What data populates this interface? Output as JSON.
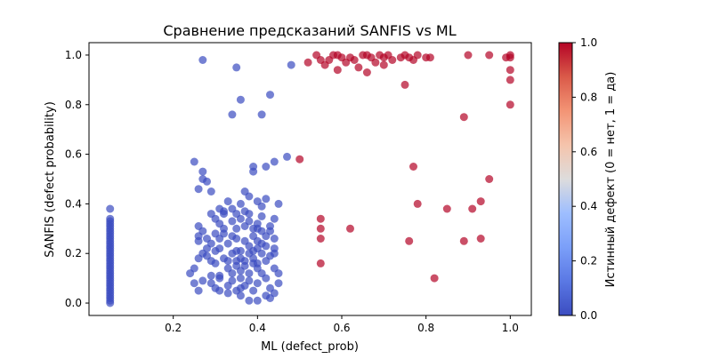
{
  "chart_data": {
    "type": "scatter",
    "title": "Сравнение предсказаний SANFIS vs ML",
    "xlabel": "ML (defect_prob)",
    "ylabel": "SANFIS (defect probability)",
    "xlim": [
      0.0,
      1.05
    ],
    "ylim": [
      -0.05,
      1.05
    ],
    "xticks": [
      "0.2",
      "0.4",
      "0.6",
      "0.8",
      "1.0"
    ],
    "yticks": [
      "0.0",
      "0.2",
      "0.4",
      "0.6",
      "0.8",
      "1.0"
    ],
    "grid": false,
    "colorbar": {
      "label": "Истинный дефект (0 = нет, 1 = да)",
      "colormap": "coolwarm",
      "range": [
        0.0,
        1.0
      ],
      "ticks": [
        "0.0",
        "0.2",
        "0.4",
        "0.6",
        "0.8",
        "1.0"
      ],
      "low_color": "#3b4cc0",
      "high_color": "#b40426"
    },
    "series": [
      {
        "class": 0,
        "color": "#3b4cc0",
        "points": [
          [
            0.05,
            0.0
          ],
          [
            0.05,
            0.01
          ],
          [
            0.05,
            0.02
          ],
          [
            0.05,
            0.03
          ],
          [
            0.05,
            0.04
          ],
          [
            0.05,
            0.05
          ],
          [
            0.05,
            0.06
          ],
          [
            0.05,
            0.07
          ],
          [
            0.05,
            0.08
          ],
          [
            0.05,
            0.09
          ],
          [
            0.05,
            0.1
          ],
          [
            0.05,
            0.11
          ],
          [
            0.05,
            0.12
          ],
          [
            0.05,
            0.13
          ],
          [
            0.05,
            0.14
          ],
          [
            0.05,
            0.15
          ],
          [
            0.05,
            0.16
          ],
          [
            0.05,
            0.17
          ],
          [
            0.05,
            0.18
          ],
          [
            0.05,
            0.19
          ],
          [
            0.05,
            0.2
          ],
          [
            0.05,
            0.21
          ],
          [
            0.05,
            0.22
          ],
          [
            0.05,
            0.23
          ],
          [
            0.05,
            0.24
          ],
          [
            0.05,
            0.25
          ],
          [
            0.05,
            0.26
          ],
          [
            0.05,
            0.27
          ],
          [
            0.05,
            0.28
          ],
          [
            0.05,
            0.29
          ],
          [
            0.05,
            0.3
          ],
          [
            0.05,
            0.31
          ],
          [
            0.05,
            0.32
          ],
          [
            0.05,
            0.33
          ],
          [
            0.05,
            0.34
          ],
          [
            0.05,
            0.38
          ],
          [
            0.27,
            0.98
          ],
          [
            0.35,
            0.95
          ],
          [
            0.48,
            0.96
          ],
          [
            0.36,
            0.82
          ],
          [
            0.43,
            0.84
          ],
          [
            0.34,
            0.76
          ],
          [
            0.41,
            0.76
          ],
          [
            0.25,
            0.57
          ],
          [
            0.39,
            0.53
          ],
          [
            0.42,
            0.55
          ],
          [
            0.44,
            0.57
          ],
          [
            0.47,
            0.59
          ],
          [
            0.39,
            0.55
          ],
          [
            0.27,
            0.53
          ],
          [
            0.27,
            0.5
          ],
          [
            0.28,
            0.49
          ],
          [
            0.26,
            0.46
          ],
          [
            0.29,
            0.45
          ],
          [
            0.37,
            0.45
          ],
          [
            0.38,
            0.43
          ],
          [
            0.42,
            0.42
          ],
          [
            0.4,
            0.41
          ],
          [
            0.36,
            0.4
          ],
          [
            0.33,
            0.41
          ],
          [
            0.31,
            0.38
          ],
          [
            0.32,
            0.37
          ],
          [
            0.35,
            0.36
          ],
          [
            0.37,
            0.37
          ],
          [
            0.41,
            0.39
          ],
          [
            0.45,
            0.4
          ],
          [
            0.41,
            0.35
          ],
          [
            0.44,
            0.34
          ],
          [
            0.38,
            0.33
          ],
          [
            0.34,
            0.33
          ],
          [
            0.3,
            0.34
          ],
          [
            0.31,
            0.32
          ],
          [
            0.29,
            0.36
          ],
          [
            0.26,
            0.31
          ],
          [
            0.27,
            0.29
          ],
          [
            0.26,
            0.27
          ],
          [
            0.26,
            0.25
          ],
          [
            0.28,
            0.26
          ],
          [
            0.3,
            0.28
          ],
          [
            0.32,
            0.3
          ],
          [
            0.35,
            0.3
          ],
          [
            0.37,
            0.31
          ],
          [
            0.39,
            0.3
          ],
          [
            0.43,
            0.31
          ],
          [
            0.41,
            0.29
          ],
          [
            0.39,
            0.27
          ],
          [
            0.37,
            0.25
          ],
          [
            0.35,
            0.26
          ],
          [
            0.33,
            0.24
          ],
          [
            0.31,
            0.22
          ],
          [
            0.28,
            0.22
          ],
          [
            0.27,
            0.2
          ],
          [
            0.29,
            0.17
          ],
          [
            0.3,
            0.16
          ],
          [
            0.32,
            0.18
          ],
          [
            0.35,
            0.21
          ],
          [
            0.38,
            0.23
          ],
          [
            0.4,
            0.25
          ],
          [
            0.42,
            0.23
          ],
          [
            0.44,
            0.22
          ],
          [
            0.41,
            0.2
          ],
          [
            0.39,
            0.18
          ],
          [
            0.37,
            0.17
          ],
          [
            0.35,
            0.15
          ],
          [
            0.33,
            0.14
          ],
          [
            0.36,
            0.13
          ],
          [
            0.38,
            0.12
          ],
          [
            0.4,
            0.14
          ],
          [
            0.42,
            0.17
          ],
          [
            0.43,
            0.19
          ],
          [
            0.44,
            0.14
          ],
          [
            0.45,
            0.12
          ],
          [
            0.42,
            0.1
          ],
          [
            0.4,
            0.08
          ],
          [
            0.37,
            0.07
          ],
          [
            0.34,
            0.09
          ],
          [
            0.31,
            0.1
          ],
          [
            0.29,
            0.08
          ],
          [
            0.27,
            0.09
          ],
          [
            0.25,
            0.08
          ],
          [
            0.26,
            0.05
          ],
          [
            0.25,
            0.14
          ],
          [
            0.24,
            0.12
          ],
          [
            0.31,
            0.05
          ],
          [
            0.33,
            0.04
          ],
          [
            0.36,
            0.03
          ],
          [
            0.39,
            0.05
          ],
          [
            0.42,
            0.03
          ],
          [
            0.44,
            0.04
          ],
          [
            0.43,
            0.06
          ],
          [
            0.45,
            0.08
          ],
          [
            0.41,
            0.12
          ],
          [
            0.38,
            0.09
          ],
          [
            0.36,
            0.1
          ],
          [
            0.34,
            0.12
          ],
          [
            0.31,
            0.11
          ],
          [
            0.29,
            0.11
          ],
          [
            0.33,
            0.07
          ],
          [
            0.3,
            0.06
          ],
          [
            0.35,
            0.05
          ],
          [
            0.4,
            0.01
          ],
          [
            0.43,
            0.02
          ],
          [
            0.38,
            0.01
          ],
          [
            0.36,
            0.06
          ],
          [
            0.34,
            0.2
          ],
          [
            0.36,
            0.21
          ],
          [
            0.38,
            0.2
          ],
          [
            0.4,
            0.16
          ],
          [
            0.36,
            0.18
          ],
          [
            0.32,
            0.28
          ],
          [
            0.34,
            0.27
          ],
          [
            0.44,
            0.26
          ],
          [
            0.4,
            0.22
          ],
          [
            0.39,
            0.21
          ],
          [
            0.3,
            0.21
          ],
          [
            0.28,
            0.19
          ],
          [
            0.26,
            0.18
          ],
          [
            0.32,
            0.36
          ],
          [
            0.34,
            0.38
          ],
          [
            0.36,
            0.34
          ],
          [
            0.38,
            0.36
          ],
          [
            0.4,
            0.32
          ],
          [
            0.43,
            0.29
          ],
          [
            0.42,
            0.27
          ],
          [
            0.4,
            0.3
          ],
          [
            0.31,
            0.26
          ],
          [
            0.29,
            0.24
          ],
          [
            0.33,
            0.17
          ],
          [
            0.35,
            0.17
          ],
          [
            0.41,
            0.24
          ],
          [
            0.44,
            0.2
          ],
          [
            0.39,
            0.16
          ],
          [
            0.37,
            0.15
          ]
        ]
      },
      {
        "class": 1,
        "color": "#b40426",
        "points": [
          [
            0.52,
            0.97
          ],
          [
            0.54,
            1.0
          ],
          [
            0.55,
            0.98
          ],
          [
            0.56,
            0.96
          ],
          [
            0.57,
            0.98
          ],
          [
            0.58,
            1.0
          ],
          [
            0.59,
            1.0
          ],
          [
            0.6,
            0.99
          ],
          [
            0.61,
            0.97
          ],
          [
            0.62,
            0.99
          ],
          [
            0.63,
            0.98
          ],
          [
            0.65,
            1.0
          ],
          [
            0.66,
            1.0
          ],
          [
            0.67,
            0.99
          ],
          [
            0.68,
            0.97
          ],
          [
            0.69,
            1.0
          ],
          [
            0.7,
            0.99
          ],
          [
            0.71,
            1.0
          ],
          [
            0.72,
            0.98
          ],
          [
            0.74,
            0.99
          ],
          [
            0.75,
            1.0
          ],
          [
            0.76,
            0.99
          ],
          [
            0.77,
            0.98
          ],
          [
            0.78,
            1.0
          ],
          [
            0.8,
            0.99
          ],
          [
            0.81,
            0.99
          ],
          [
            0.59,
            0.94
          ],
          [
            0.64,
            0.95
          ],
          [
            0.66,
            0.93
          ],
          [
            0.7,
            0.96
          ],
          [
            0.9,
            1.0
          ],
          [
            0.95,
            1.0
          ],
          [
            0.99,
            0.99
          ],
          [
            1.0,
            1.0
          ],
          [
            1.0,
            0.99
          ],
          [
            1.0,
            0.94
          ],
          [
            1.0,
            0.9
          ],
          [
            0.75,
            0.88
          ],
          [
            0.89,
            0.75
          ],
          [
            1.0,
            0.8
          ],
          [
            0.5,
            0.58
          ],
          [
            0.77,
            0.55
          ],
          [
            0.95,
            0.5
          ],
          [
            0.93,
            0.41
          ],
          [
            0.78,
            0.4
          ],
          [
            0.91,
            0.38
          ],
          [
            0.85,
            0.38
          ],
          [
            0.55,
            0.34
          ],
          [
            0.55,
            0.3
          ],
          [
            0.62,
            0.3
          ],
          [
            0.55,
            0.26
          ],
          [
            0.76,
            0.25
          ],
          [
            0.89,
            0.25
          ],
          [
            0.93,
            0.26
          ],
          [
            0.55,
            0.16
          ],
          [
            0.82,
            0.1
          ]
        ]
      }
    ]
  }
}
